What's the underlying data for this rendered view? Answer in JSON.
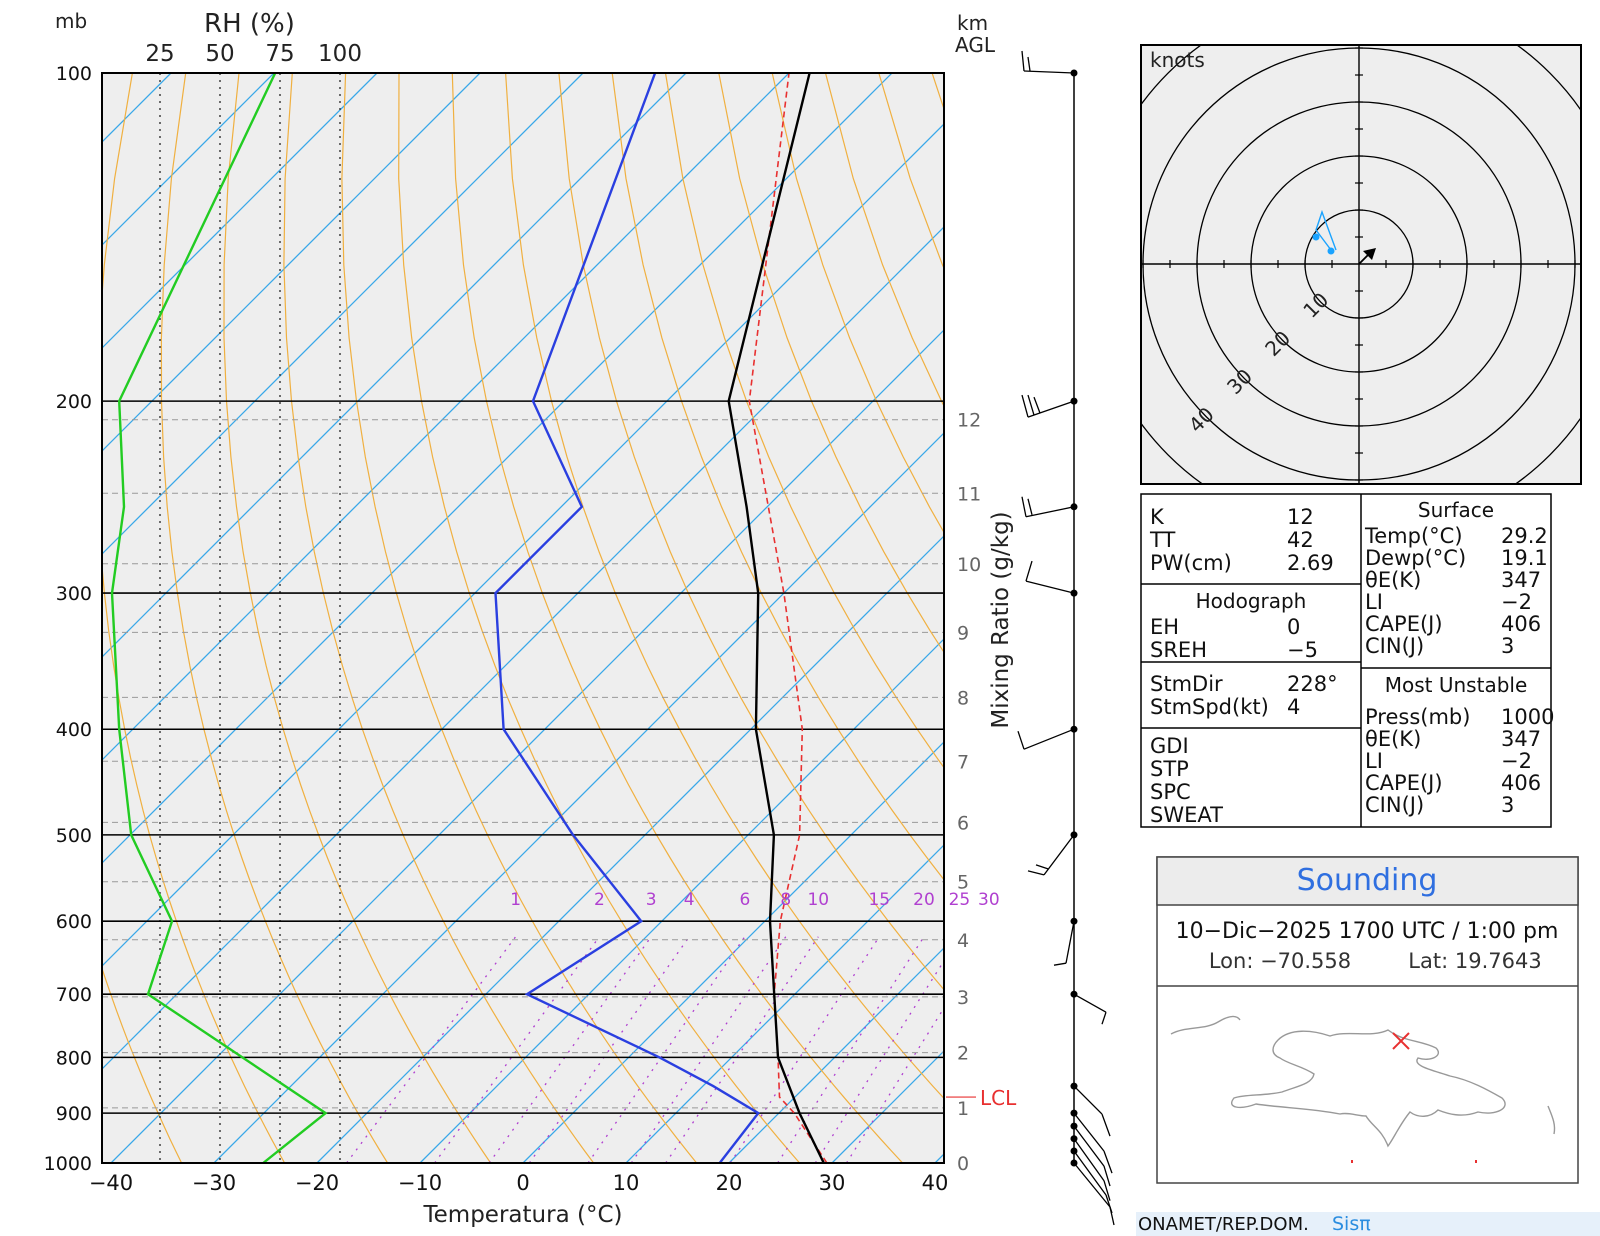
{
  "header": {
    "pressure_unit": "mb",
    "rh_label": "RH (%)",
    "rh_ticks": [
      "25",
      "50",
      "75",
      "100"
    ],
    "km_label": "km",
    "agl_label": "AGL"
  },
  "skewt": {
    "pressure_levels": [
      100,
      200,
      300,
      400,
      500,
      600,
      700,
      800,
      900,
      1000
    ],
    "pressure_labels": [
      "100",
      "200",
      "300",
      "400",
      "500",
      "600",
      "700",
      "800",
      "900",
      "1000"
    ],
    "temp_ticks": [
      -40,
      -30,
      -20,
      -10,
      0,
      10,
      20,
      30,
      40
    ],
    "temp_tick_labels": [
      "−40",
      "−30",
      "−20",
      "−10",
      "0",
      "10",
      "20",
      "30",
      "40"
    ],
    "xlabel": "Temperatura (°C)",
    "mixing_ratio_title": "Mixing Ratio (g/kg)",
    "mixing_ratio_labels": [
      "1",
      "2",
      "3",
      "4",
      "6",
      "8",
      "10",
      "15",
      "20",
      "25",
      "30"
    ],
    "height_km_labels": [
      "0",
      "1",
      "2",
      "3",
      "4",
      "5",
      "6",
      "7",
      "8",
      "9",
      "10",
      "11",
      "12"
    ],
    "lcl_label": "LCL",
    "colors": {
      "temperature": "#000000",
      "dewpoint": "#2a3fe0",
      "rh": "#22cc22",
      "parcel": "#e83030",
      "dry_adiabat": "#f0b040",
      "isotherm": "#39a8e8",
      "mixing_ratio": "#b040d0",
      "background": "#eeeeee"
    }
  },
  "hodograph": {
    "unit_label": "knots",
    "ring_labels": [
      "10",
      "20",
      "30",
      "40"
    ]
  },
  "indices": {
    "left": [
      {
        "label": "K",
        "value": "12"
      },
      {
        "label": "TT",
        "value": "42"
      },
      {
        "label": "PW(cm)",
        "value": "2.69"
      }
    ],
    "hodograph_title": "Hodograph",
    "hodograph_rows": [
      {
        "label": "EH",
        "value": "0"
      },
      {
        "label": "SREH",
        "value": "−5"
      }
    ],
    "storm_rows": [
      {
        "label": "StmDir",
        "value": "228°"
      },
      {
        "label": "StmSpd(kt)",
        "value": "4"
      }
    ],
    "extra_rows": [
      "GDI",
      "STP",
      "SPC",
      "SWEAT"
    ],
    "surface_title": "Surface",
    "surface_rows": [
      {
        "label": "Temp(°C)",
        "value": "29.2"
      },
      {
        "label": "Dewp(°C)",
        "value": "19.1"
      },
      {
        "label": "θE(K)",
        "value": "347"
      },
      {
        "label": "LI",
        "value": "−2"
      },
      {
        "label": "CAPE(J)",
        "value": "406"
      },
      {
        "label": "CIN(J)",
        "value": "3"
      }
    ],
    "unstable_title": "Most Unstable",
    "unstable_rows": [
      {
        "label": "Press(mb)",
        "value": "1000"
      },
      {
        "label": "θE(K)",
        "value": "347"
      },
      {
        "label": "LI",
        "value": "−2"
      },
      {
        "label": "CAPE(J)",
        "value": "406"
      },
      {
        "label": "CIN(J)",
        "value": "3"
      }
    ]
  },
  "sounding": {
    "title": "Sounding",
    "datetime": "10−Dic−2025 1700 UTC / 1:00 pm",
    "lon": "Lon: −70.558",
    "lat": "Lat: 19.7643"
  },
  "footer": {
    "org": "ONAMET/REP.DOM.",
    "brand": "Sisπ"
  },
  "chart_data": {
    "type": "line",
    "xlabel": "Temperatura (°C)",
    "ylabel": "mb",
    "xlim": [
      -40,
      40
    ],
    "ylim": [
      1000,
      100
    ],
    "yscale": "log",
    "skew": "temperature lines tilted 45°",
    "series": [
      {
        "name": "Temperature",
        "pressure": [
          1000,
          900,
          800,
          700,
          600,
          500,
          400,
          300,
          250,
          200,
          100
        ],
        "values": [
          29.2,
          22.0,
          14.5,
          8.0,
          0.5,
          -7.5,
          -19.5,
          -32.5,
          -42.0,
          -54.0,
          -78.0
        ]
      },
      {
        "name": "Dewpoint",
        "pressure": [
          1000,
          900,
          850,
          800,
          700,
          600,
          500,
          400,
          300,
          250,
          200,
          100
        ],
        "values": [
          19.1,
          18.0,
          11.0,
          3.0,
          -16.0,
          -12.0,
          -27.0,
          -44.0,
          -58.0,
          -58.0,
          -73.0,
          -93.0
        ]
      },
      {
        "name": "Parcel",
        "pressure": [
          1000,
          900,
          870,
          800,
          700,
          600,
          500,
          400,
          300,
          200,
          100
        ],
        "values": [
          29.5,
          21.5,
          18.5,
          14.5,
          8.0,
          1.5,
          -5.0,
          -15.0,
          -30.0,
          -52.0,
          -80.0
        ]
      },
      {
        "name": "RH",
        "pressure": [
          1000,
          900,
          700,
          600,
          500,
          400,
          300,
          250,
          200,
          100
        ],
        "rh_percent": [
          68,
          94,
          20,
          30,
          13,
          8,
          5,
          10,
          8,
          73
        ]
      }
    ],
    "wind_barbs_mb": [
      100,
      200,
      250,
      300,
      400,
      500,
      600,
      700,
      850,
      900,
      925,
      950,
      975,
      1000
    ],
    "hodograph_storm_motion": {
      "direction_deg": 228,
      "speed_kt": 4
    }
  }
}
